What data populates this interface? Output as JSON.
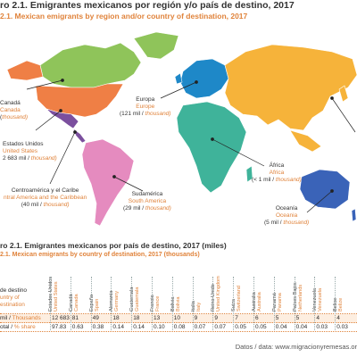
{
  "figure1": {
    "title_es": "ro 2.1. Emigrantes mexicanos por región y/o país de destino, 2017",
    "title_en": "2.1. Mexican emigrants by region and/or country of destination, 2017"
  },
  "map_labels": {
    "canada": {
      "es": "Canadá",
      "en": "Canada",
      "num": "(",
      "unit": "thousand)"
    },
    "usa": {
      "es": "Estados Unidos",
      "en": "United States",
      "num": "2 683 mil / ",
      "unit": "thousand)"
    },
    "central": {
      "es": "Centroamérica y el Caribe",
      "en": "ntral America and the Caribbean",
      "num": "(40 mil / ",
      "unit": "thousand)"
    },
    "south": {
      "es": "Sudamérica",
      "en": "South America",
      "num": "(29 mil / ",
      "unit": "thousand)"
    },
    "europe": {
      "es": "Europa",
      "en": "Europe",
      "num": "(121 mil / ",
      "unit": "thousand)"
    },
    "africa": {
      "es": "África",
      "en": "Africa",
      "num": "(< 1 mil / ",
      "unit": "thousand)"
    },
    "oceania": {
      "es": "Oceanía",
      "en": "Oceania",
      "num": "(5 mil / ",
      "unit": "thousand)"
    }
  },
  "region_colors": {
    "north_america": "#ef7f45",
    "greenland_canada": "#8fc45a",
    "usa": "#2e5da8",
    "central": "#7b4f9e",
    "south_america": "#e58bbf",
    "europe": "#1e88c8",
    "africa": "#3fb39a",
    "asia": "#f6b33a",
    "oceania": "#3a63b8"
  },
  "figure2": {
    "title_es": "ro 2.1. Emigrantes mexicanos por país de destino, 2017 (miles)",
    "title_en": "2.1. Mexican emigrants by country of destination, 2017 (thousands)"
  },
  "table": {
    "header_label_es": "de destino",
    "header_label_en1": "untry of",
    "header_label_en2": "estination",
    "row1_label_es": "mil / ",
    "row1_label_en": "Thousands",
    "row2_label_es": "otal / ",
    "row2_label_en": "% share",
    "columns": [
      {
        "es": "Estados Unidos",
        "en": "United States",
        "v1": "12 683",
        "v2": "97.83"
      },
      {
        "es": "Canadá",
        "en": "Canada",
        "v1": "81",
        "v2": "0.63"
      },
      {
        "es": "España",
        "en": "Spain",
        "v1": "49",
        "v2": "0.38"
      },
      {
        "es": "Alemania",
        "en": "Germany",
        "v1": "18",
        "v2": "0.14"
      },
      {
        "es": "Guatemala",
        "en": "Guatemala",
        "v1": "18",
        "v2": "0.14"
      },
      {
        "es": "Francia",
        "en": "France",
        "v1": "13",
        "v2": "0.10"
      },
      {
        "es": "Bolivia",
        "en": "Bolivia",
        "v1": "10",
        "v2": "0.08"
      },
      {
        "es": "Italia",
        "en": "Italy",
        "v1": "9",
        "v2": "0.07"
      },
      {
        "es": "Reino Unido",
        "en": "United Kingdom",
        "v1": "9",
        "v2": "0.07"
      },
      {
        "es": "Suiza",
        "en": "Switzerland",
        "v1": "7",
        "v2": "0.05"
      },
      {
        "es": "Australia",
        "en": "Australia",
        "v1": "6",
        "v2": "0.05"
      },
      {
        "es": "Panamá",
        "en": "Panama",
        "v1": "5",
        "v2": "0.04"
      },
      {
        "es": "Países Bajos",
        "en": "Netherlands",
        "v1": "5",
        "v2": "0.04"
      },
      {
        "es": "Venezuela",
        "en": "Venezuela",
        "v1": "4",
        "v2": "0.03"
      },
      {
        "es": "Belice",
        "en": "Belize",
        "v1": "4",
        "v2": "0.03"
      }
    ]
  },
  "footer": "Datos / data: www.migracionyremesas.or"
}
